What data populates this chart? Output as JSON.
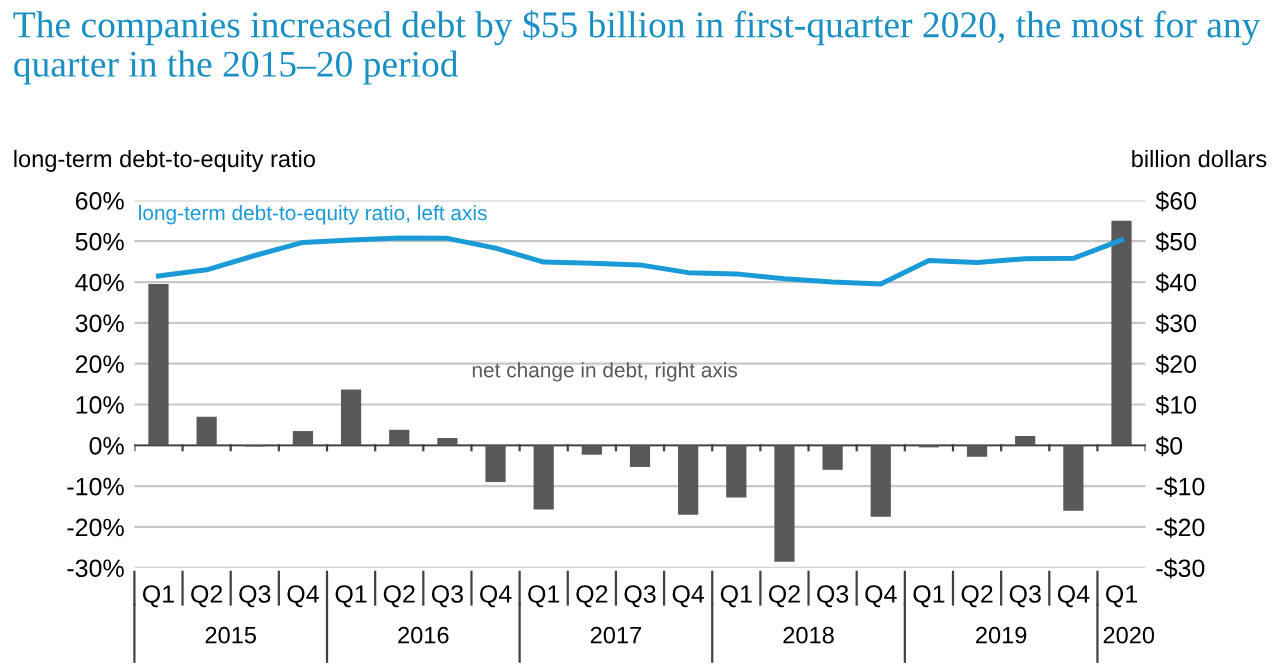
{
  "chart_data": {
    "type": "bar",
    "title": "The companies increased debt by $55 billion in first-quarter 2020, the most for any quarter in the 2015–20 period",
    "ylabel": "long-term debt-to-equity ratio",
    "y2label": "billion dollars",
    "categories": [
      "Q1",
      "Q2",
      "Q3",
      "Q4",
      "Q1",
      "Q2",
      "Q3",
      "Q4",
      "Q1",
      "Q2",
      "Q3",
      "Q4",
      "Q1",
      "Q2",
      "Q3",
      "Q4",
      "Q1",
      "Q2",
      "Q3",
      "Q4",
      "Q1"
    ],
    "series": [
      {
        "name": "net change in debt, right axis",
        "axis": "y2",
        "color": "#595959",
        "values": [
          39.5,
          7,
          -0.3,
          3.5,
          13.7,
          3.8,
          1.8,
          -9,
          -15.7,
          -2.3,
          -5.3,
          -17,
          -12.8,
          -28.5,
          -6,
          -17.5,
          -0.5,
          -2.8,
          2.3,
          -16,
          55
        ]
      },
      {
        "name": "long-term debt-to-equity ratio, left axis",
        "type": "line",
        "axis": "y",
        "color": "#1a9bd7",
        "values": [
          41.5,
          43,
          46.5,
          49.7,
          50.3,
          50.8,
          50.7,
          48.3,
          44.9,
          44.6,
          44.2,
          42.3,
          42,
          40.8,
          40,
          39.5,
          45.3,
          44.8,
          45.7,
          45.8,
          50.3
        ]
      }
    ],
    "ylim": [
      -30,
      60
    ],
    "yticks": [
      {
        "value": -30,
        "label": "-30%"
      },
      {
        "value": -20,
        "label": "-20%"
      },
      {
        "value": -10,
        "label": "-10%"
      },
      {
        "value": 0,
        "label": "0%"
      },
      {
        "value": 10,
        "label": "10%"
      },
      {
        "value": 20,
        "label": "20%"
      },
      {
        "value": 30,
        "label": "30%"
      },
      {
        "value": 40,
        "label": "40%"
      },
      {
        "value": 50,
        "label": "50%"
      },
      {
        "value": 60,
        "label": "60%"
      }
    ],
    "y2lim": [
      -30,
      60
    ],
    "y2ticks": [
      {
        "value": -30,
        "label": "-$30"
      },
      {
        "value": -20,
        "label": "-$20"
      },
      {
        "value": -10,
        "label": "-$10"
      },
      {
        "value": 0,
        "label": "$0"
      },
      {
        "value": 10,
        "label": "$10"
      },
      {
        "value": 20,
        "label": "$20"
      },
      {
        "value": 30,
        "label": "$30"
      },
      {
        "value": 40,
        "label": "$40"
      },
      {
        "value": 50,
        "label": "$50"
      },
      {
        "value": 60,
        "label": "$60"
      }
    ],
    "grid": "y",
    "marker": "none",
    "line_style": "solid",
    "annotations": [
      "2015",
      "2016",
      "2017",
      "2018",
      "2019",
      "2020"
    ]
  }
}
